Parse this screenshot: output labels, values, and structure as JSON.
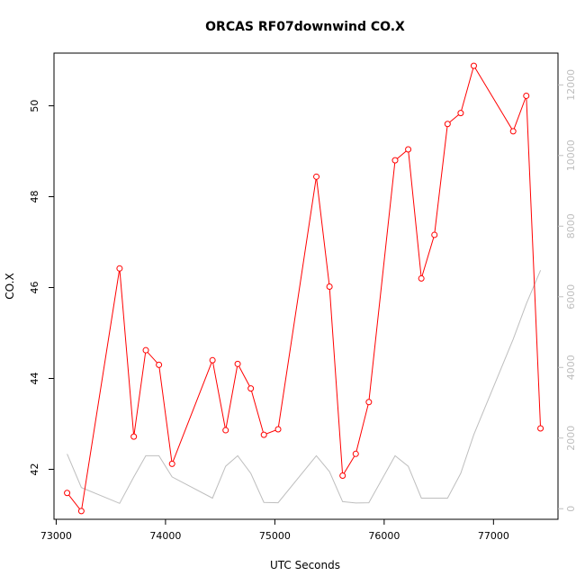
{
  "chart_data": {
    "type": "line",
    "title": "ORCAS RF07downwind CO.X",
    "xlabel": "UTC Seconds",
    "ylabel": "CO.X",
    "xlim": [
      72980,
      77590
    ],
    "ylim": [
      40.9,
      51.16
    ],
    "y2lim": [
      -300,
      12900
    ],
    "xticks": [
      73000,
      74000,
      75000,
      76000,
      77000
    ],
    "yticks": [
      42,
      44,
      46,
      48,
      50
    ],
    "y2ticks": [
      0,
      2000,
      4000,
      6000,
      8000,
      10000,
      12000
    ],
    "grid": false,
    "series": [
      {
        "role": "primary",
        "color": "#ff0000",
        "marker": "open-circle",
        "x": [
          73100,
          73230,
          73580,
          73710,
          73820,
          73940,
          74060,
          74430,
          74550,
          74660,
          74780,
          74900,
          75030,
          75380,
          75500,
          75620,
          75740,
          75860,
          76100,
          76220,
          76340,
          76460,
          76580,
          76700,
          76820,
          77180,
          77300,
          77430
        ],
        "values": [
          41.48,
          41.08,
          46.42,
          42.72,
          44.62,
          44.3,
          42.12,
          44.4,
          42.86,
          44.32,
          43.78,
          42.76,
          42.88,
          48.44,
          46.02,
          41.86,
          42.34,
          43.48,
          48.8,
          49.04,
          46.2,
          47.16,
          49.6,
          49.84,
          50.88,
          49.44,
          50.22,
          42.9
        ]
      },
      {
        "role": "secondary",
        "color": "#bebebe",
        "x": [
          73100,
          73230,
          73580,
          73710,
          73820,
          73940,
          74060,
          74430,
          74550,
          74660,
          74780,
          74900,
          75030,
          75380,
          75500,
          75620,
          75740,
          75860,
          76100,
          76220,
          76340,
          76460,
          76580,
          76700,
          76820,
          77180,
          77300,
          77430
        ],
        "values": [
          1550,
          600,
          150,
          900,
          1500,
          1500,
          900,
          300,
          1200,
          1500,
          1000,
          180,
          170,
          1500,
          1050,
          200,
          160,
          170,
          1500,
          1200,
          300,
          300,
          300,
          1000,
          2100,
          4800,
          5800,
          6750
        ]
      }
    ]
  }
}
